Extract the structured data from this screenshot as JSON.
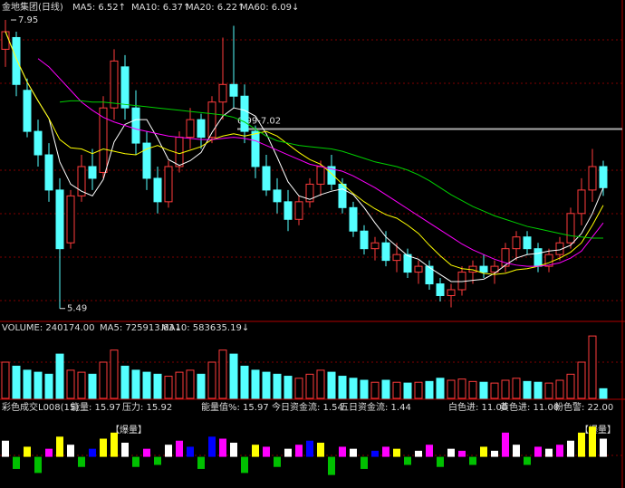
{
  "chart_data": {
    "type": "candlestick",
    "title": "金地集团(日线)",
    "up_color": "#ff3c3c",
    "down_color": "#54ffff",
    "ylim": [
      5.38,
      8.12
    ],
    "ohlc": [
      [
        7.7,
        7.95,
        7.55,
        7.85
      ],
      [
        7.8,
        7.85,
        7.3,
        7.4
      ],
      [
        7.35,
        7.45,
        6.95,
        7.0
      ],
      [
        7.0,
        7.1,
        6.7,
        6.8
      ],
      [
        6.8,
        6.9,
        6.4,
        6.5
      ],
      [
        6.5,
        6.6,
        5.49,
        6.0
      ],
      [
        6.05,
        6.5,
        6.0,
        6.45
      ],
      [
        6.45,
        6.8,
        6.4,
        6.7
      ],
      [
        6.7,
        6.85,
        6.5,
        6.6
      ],
      [
        6.65,
        7.3,
        6.6,
        7.2
      ],
      [
        7.2,
        7.7,
        7.1,
        7.6
      ],
      [
        7.55,
        7.65,
        7.1,
        7.2
      ],
      [
        7.2,
        7.35,
        6.8,
        6.9
      ],
      [
        6.9,
        7.0,
        6.5,
        6.6
      ],
      [
        6.6,
        6.7,
        6.3,
        6.4
      ],
      [
        6.4,
        6.75,
        6.35,
        6.7
      ],
      [
        6.7,
        7.0,
        6.65,
        6.95
      ],
      [
        6.95,
        7.2,
        6.85,
        7.1
      ],
      [
        7.1,
        7.15,
        6.85,
        6.95
      ],
      [
        6.95,
        7.3,
        6.9,
        7.25
      ],
      [
        7.25,
        7.8,
        7.1,
        7.4
      ],
      [
        7.4,
        7.9,
        7.2,
        7.3
      ],
      [
        7.3,
        7.4,
        6.9,
        7.0
      ],
      [
        7.0,
        7.05,
        6.6,
        6.7
      ],
      [
        6.7,
        6.8,
        6.45,
        6.5
      ],
      [
        6.5,
        6.6,
        6.3,
        6.4
      ],
      [
        6.4,
        6.5,
        6.15,
        6.25
      ],
      [
        6.25,
        6.45,
        6.2,
        6.4
      ],
      [
        6.4,
        6.6,
        6.35,
        6.55
      ],
      [
        6.55,
        6.75,
        6.45,
        6.7
      ],
      [
        6.7,
        6.8,
        6.5,
        6.55
      ],
      [
        6.55,
        6.6,
        6.3,
        6.35
      ],
      [
        6.35,
        6.4,
        6.1,
        6.15
      ],
      [
        6.15,
        6.2,
        5.95,
        6.0
      ],
      [
        6.0,
        6.1,
        5.9,
        6.05
      ],
      [
        6.05,
        6.15,
        5.85,
        5.9
      ],
      [
        5.9,
        6.05,
        5.8,
        5.95
      ],
      [
        5.95,
        6.0,
        5.75,
        5.8
      ],
      [
        5.8,
        5.9,
        5.7,
        5.85
      ],
      [
        5.85,
        5.9,
        5.65,
        5.7
      ],
      [
        5.7,
        5.75,
        5.55,
        5.6
      ],
      [
        5.6,
        5.7,
        5.5,
        5.65
      ],
      [
        5.65,
        5.85,
        5.6,
        5.8
      ],
      [
        5.8,
        5.9,
        5.7,
        5.85
      ],
      [
        5.85,
        5.95,
        5.75,
        5.8
      ],
      [
        5.8,
        5.9,
        5.7,
        5.85
      ],
      [
        5.85,
        6.05,
        5.8,
        6.0
      ],
      [
        6.0,
        6.15,
        5.9,
        6.1
      ],
      [
        6.1,
        6.15,
        5.95,
        6.0
      ],
      [
        6.0,
        6.05,
        5.8,
        5.85
      ],
      [
        5.85,
        6.0,
        5.8,
        5.95
      ],
      [
        5.95,
        6.1,
        5.9,
        6.05
      ],
      [
        6.05,
        6.35,
        6.0,
        6.3
      ],
      [
        6.3,
        6.6,
        6.2,
        6.5
      ],
      [
        6.5,
        6.85,
        6.4,
        6.7
      ],
      [
        6.7,
        6.75,
        6.45,
        6.52
      ]
    ],
    "series": [
      {
        "label": "MA5: 6.52↑",
        "color": "#ffffff",
        "values": [
          7.85,
          7.62,
          7.42,
          7.26,
          7.11,
          6.74,
          6.55,
          6.49,
          6.45,
          6.59,
          6.91,
          7.06,
          7.1,
          7.1,
          6.94,
          6.76,
          6.71,
          6.75,
          6.82,
          6.99,
          7.13,
          7.2,
          7.18,
          7.13,
          6.98,
          6.78,
          6.57,
          6.45,
          6.42,
          6.46,
          6.49,
          6.51,
          6.46,
          6.35,
          6.22,
          6.1,
          6.02,
          5.94,
          5.91,
          5.84,
          5.78,
          5.72,
          5.72,
          5.73,
          5.74,
          5.79,
          5.86,
          5.92,
          5.95,
          5.96,
          5.98,
          5.99,
          6.03,
          6.13,
          6.3,
          6.52
        ]
      },
      {
        "label": "MA10: 6.37↑",
        "color": "#ffff00",
        "values": [
          7.85,
          7.62,
          7.42,
          7.26,
          7.11,
          6.93,
          6.86,
          6.85,
          6.81,
          6.85,
          6.83,
          6.81,
          6.8,
          6.85,
          6.88,
          6.84,
          6.81,
          6.84,
          6.87,
          6.93,
          6.96,
          6.98,
          6.96,
          6.98,
          7.0,
          6.96,
          6.89,
          6.82,
          6.76,
          6.72,
          6.64,
          6.55,
          6.47,
          6.4,
          6.34,
          6.29,
          6.26,
          6.2,
          6.13,
          6.03,
          5.94,
          5.86,
          5.83,
          5.82,
          5.79,
          5.78,
          5.79,
          5.82,
          5.83,
          5.85,
          5.88,
          5.92,
          5.97,
          6.05,
          6.2,
          6.37
        ]
      },
      {
        "label": "MA20: 6.22↑",
        "color": "#ff00ff",
        "values": [
          null,
          null,
          null,
          7.62,
          7.55,
          7.45,
          7.35,
          7.25,
          7.18,
          7.12,
          7.08,
          7.05,
          7.02,
          7.0,
          6.98,
          6.96,
          6.95,
          6.94,
          6.93,
          6.93,
          6.94,
          6.95,
          6.94,
          6.92,
          6.88,
          6.84,
          6.8,
          6.76,
          6.72,
          6.7,
          6.68,
          6.66,
          6.62,
          6.57,
          6.52,
          6.46,
          6.4,
          6.34,
          6.28,
          6.22,
          6.16,
          6.1,
          6.04,
          5.99,
          5.95,
          5.91,
          5.88,
          5.86,
          5.85,
          5.85,
          5.86,
          5.88,
          5.92,
          5.98,
          6.1,
          6.22
        ]
      },
      {
        "label": "MA60: 6.09↓",
        "color": "#00d000",
        "values": [
          null,
          null,
          null,
          null,
          null,
          7.25,
          7.26,
          7.26,
          7.25,
          7.25,
          7.24,
          7.23,
          7.22,
          7.21,
          7.2,
          7.19,
          7.18,
          7.17,
          7.16,
          7.15,
          7.14,
          7.12,
          7.08,
          7.02,
          6.96,
          6.92,
          6.9,
          6.88,
          6.87,
          6.86,
          6.85,
          6.83,
          6.8,
          6.77,
          6.74,
          6.72,
          6.7,
          6.67,
          6.63,
          6.58,
          6.52,
          6.46,
          6.41,
          6.36,
          6.32,
          6.28,
          6.25,
          6.22,
          6.19,
          6.17,
          6.15,
          6.13,
          6.11,
          6.1,
          6.09,
          6.09
        ]
      }
    ],
    "max_label": {
      "value": 7.95,
      "label": "7.95"
    },
    "min_label": {
      "value": 5.49,
      "label": "5.49"
    },
    "reference_line": {
      "value": 7.02,
      "label": "6.99-7.02",
      "color": "#aaaaaa"
    },
    "volume": {
      "label": {
        "text": "VOLUME: 240174.00",
        "color": "#dddddd"
      },
      "ma_labels": [
        {
          "text": "MA5: 725913.63↓",
          "color": "#ffffff"
        },
        {
          "text": "MA10: 583635.19↓",
          "color": "#ffff00"
        }
      ],
      "ylim": [
        0,
        1800000
      ],
      "values": [
        900000,
        800000,
        700000,
        650000,
        600000,
        1100000,
        700000,
        650000,
        600000,
        900000,
        1200000,
        800000,
        700000,
        650000,
        600000,
        550000,
        650000,
        700000,
        600000,
        900000,
        1200000,
        1100000,
        800000,
        700000,
        650000,
        600000,
        550000,
        500000,
        600000,
        700000,
        650000,
        550000,
        500000,
        450000,
        400000,
        450000,
        400000,
        380000,
        400000,
        420000,
        500000,
        450000,
        480000,
        420000,
        400000,
        380000,
        450000,
        500000,
        420000,
        400000,
        380000,
        450000,
        600000,
        900000,
        1550000,
        240174
      ]
    },
    "indicator": {
      "labels": [
        {
          "text": "彩色成交L008(15)",
          "color": "#bbbbbb"
        },
        {
          "text": "能量: 15.97",
          "color": "#ffffff"
        },
        {
          "text": "压力: 15.92",
          "color": "#ffff00"
        },
        {
          "text": "能量值%: 15.97",
          "color": "#ffffff"
        },
        {
          "text": "今日资金流: 1.54",
          "color": "#3060ff"
        },
        {
          "text": "五日资金流: 1.44",
          "color": "#ffffff"
        },
        {
          "text": "白色进: 11.00",
          "color": "#ffff00"
        },
        {
          "text": "黄色进: 11.00",
          "color": "#ff00ff"
        },
        {
          "text": "粉色警: 22.00",
          "color": "#00d000"
        }
      ],
      "burst_labels": [
        "【爆量】",
        "【爆量】"
      ],
      "ylim": [
        -15,
        20
      ],
      "values": [
        8,
        -6,
        5,
        -8,
        4,
        10,
        6,
        -5,
        4,
        9,
        12,
        7,
        -5,
        4,
        -4,
        6,
        8,
        5,
        -6,
        10,
        9,
        7,
        -8,
        6,
        5,
        -5,
        4,
        6,
        8,
        7,
        -9,
        5,
        4,
        -6,
        3,
        5,
        4,
        -4,
        3,
        6,
        -5,
        4,
        3,
        -4,
        5,
        3,
        12,
        6,
        -4,
        5,
        4,
        6,
        8,
        12,
        15,
        9
      ],
      "colors": [
        "#ffffff",
        "#00c000",
        "#ffff00",
        "#00c000",
        "#ff00ff",
        "#ffff00",
        "#ffffff",
        "#00c000",
        "#0000ff",
        "#ffff00",
        "#ffff00",
        "#ffffff",
        "#00c000",
        "#ff00ff",
        "#00c000",
        "#ffffff",
        "#ff00ff",
        "#0000ff",
        "#00c000",
        "#0000ff",
        "#ff00ff",
        "#ffffff",
        "#00c000",
        "#ffff00",
        "#ff00ff",
        "#00c000",
        "#ffffff",
        "#ff00ff",
        "#0000ff",
        "#ffff00",
        "#00c000",
        "#ff00ff",
        "#ffffff",
        "#00c000",
        "#0000ff",
        "#ff00ff",
        "#ffff00",
        "#00c000",
        "#ffffff",
        "#ff00ff",
        "#00c000",
        "#ffffff",
        "#ff00ff",
        "#00c000",
        "#ffff00",
        "#ffffff",
        "#ff00ff",
        "#ffffff",
        "#00c000",
        "#ff00ff",
        "#ffffff",
        "#ff00ff",
        "#ffffff",
        "#ffff00",
        "#ffff00",
        "#ffffff"
      ]
    }
  }
}
